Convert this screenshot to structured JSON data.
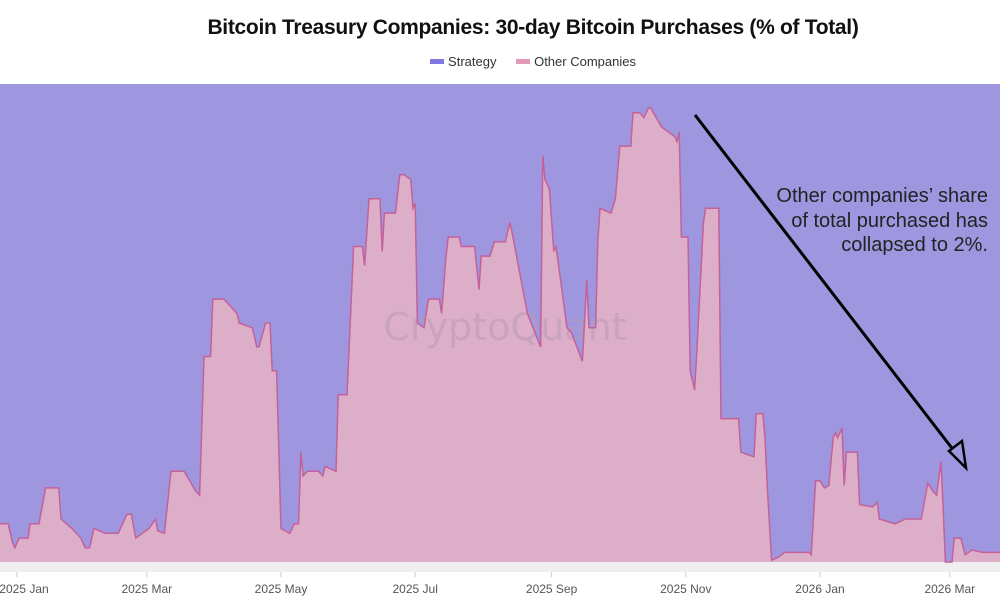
{
  "chart_data": {
    "type": "area",
    "stacked": "percent",
    "title": "Bitcoin Treasury Companies: 30-day Bitcoin Purchases (% of Total)",
    "legend_position": "top-center",
    "grid": false,
    "ylim": [
      0,
      100
    ],
    "x_ticks": [
      "2025 Jan",
      "2025 Mar",
      "2025 May",
      "2025 Jul",
      "2025 Sep",
      "2025 Nov",
      "2026 Jan",
      "2026 Mar"
    ],
    "x_tick_dates": [
      "2025-01-01",
      "2025-03-01",
      "2025-05-01",
      "2025-07-01",
      "2025-09-01",
      "2025-11-01",
      "2026-01-01",
      "2026-03-01"
    ],
    "x": [
      "2024-12-24",
      "2024-12-28",
      "2024-12-30",
      "2024-12-31",
      "2025-01-02",
      "2025-01-06",
      "2025-01-07",
      "2025-01-11",
      "2025-01-14",
      "2025-01-20",
      "2025-01-21",
      "2025-01-26",
      "2025-01-30",
      "2025-02-01",
      "2025-02-03",
      "2025-02-05",
      "2025-02-10",
      "2025-02-16",
      "2025-02-20",
      "2025-02-22",
      "2025-02-24",
      "2025-03-02",
      "2025-03-05",
      "2025-03-06",
      "2025-03-09",
      "2025-03-12",
      "2025-03-18",
      "2025-03-23",
      "2025-03-25",
      "2025-03-27",
      "2025-03-30",
      "2025-03-31",
      "2025-04-05",
      "2025-04-11",
      "2025-04-12",
      "2025-04-18",
      "2025-04-20",
      "2025-04-21",
      "2025-04-24",
      "2025-04-26",
      "2025-04-27",
      "2025-04-29",
      "2025-05-01",
      "2025-05-05",
      "2025-05-07",
      "2025-05-09",
      "2025-05-10",
      "2025-05-11",
      "2025-05-13",
      "2025-05-18",
      "2025-05-20",
      "2025-05-21",
      "2025-05-26",
      "2025-05-27",
      "2025-05-31",
      "2025-06-03",
      "2025-06-07",
      "2025-06-08",
      "2025-06-10",
      "2025-06-15",
      "2025-06-16",
      "2025-06-17",
      "2025-06-22",
      "2025-06-24",
      "2025-06-26",
      "2025-06-29",
      "2025-06-30",
      "2025-07-01",
      "2025-07-02",
      "2025-07-05",
      "2025-07-07",
      "2025-07-12",
      "2025-07-13",
      "2025-07-15",
      "2025-07-16",
      "2025-07-21",
      "2025-07-22",
      "2025-07-28",
      "2025-07-30",
      "2025-07-31",
      "2025-08-04",
      "2025-08-06",
      "2025-08-11",
      "2025-08-13",
      "2025-08-14",
      "2025-08-21",
      "2025-08-27",
      "2025-08-28",
      "2025-08-29",
      "2025-08-31",
      "2025-09-02",
      "2025-09-03",
      "2025-09-08",
      "2025-09-10",
      "2025-09-15",
      "2025-09-17",
      "2025-09-18",
      "2025-09-21",
      "2025-09-22",
      "2025-09-23",
      "2025-09-28",
      "2025-09-30",
      "2025-10-02",
      "2025-10-07",
      "2025-10-08",
      "2025-10-11",
      "2025-10-13",
      "2025-10-15",
      "2025-10-16",
      "2025-10-21",
      "2025-10-27",
      "2025-10-28",
      "2025-10-29",
      "2025-10-30",
      "2025-11-02",
      "2025-11-03",
      "2025-11-05",
      "2025-11-06",
      "2025-11-09",
      "2025-11-10",
      "2025-11-16",
      "2025-11-17",
      "2025-11-25",
      "2025-11-26",
      "2025-12-02",
      "2025-12-03",
      "2025-12-06",
      "2025-12-07",
      "2025-12-08",
      "2025-12-10",
      "2025-12-13",
      "2025-12-16",
      "2025-12-27",
      "2025-12-28",
      "2025-12-30",
      "2026-01-01",
      "2026-01-03",
      "2026-01-05",
      "2026-01-07",
      "2026-01-08",
      "2026-01-09",
      "2026-01-11",
      "2026-01-12",
      "2026-01-13",
      "2026-01-18",
      "2026-01-19",
      "2026-01-25",
      "2026-01-27",
      "2026-01-28",
      "2026-02-04",
      "2026-02-09",
      "2026-02-12",
      "2026-02-16",
      "2026-02-19",
      "2026-02-21",
      "2026-02-23",
      "2026-02-25",
      "2026-02-26",
      "2026-02-27",
      "2026-03-02",
      "2026-03-03",
      "2026-03-06",
      "2026-03-08",
      "2026-03-11",
      "2026-03-16",
      "2026-03-19",
      "2026-03-24"
    ],
    "series": [
      {
        "name": "Other Companies",
        "color": "#dcaec8",
        "line_color": "#c4609a",
        "values": [
          8,
          8,
          4,
          3,
          5,
          5,
          8,
          8,
          15.5,
          15.5,
          9,
          7,
          5,
          3,
          3,
          7,
          6,
          6,
          10,
          10,
          5,
          7,
          9,
          6.5,
          6,
          19,
          19,
          15,
          14,
          43,
          43,
          55,
          55,
          52,
          50,
          49,
          45,
          45,
          50,
          50,
          40,
          40,
          7,
          6,
          8,
          8,
          23,
          18,
          19,
          19,
          18,
          20,
          19,
          35,
          35,
          66,
          66,
          62,
          76,
          76,
          65,
          73,
          73,
          81,
          81,
          80,
          74,
          75,
          50,
          49,
          55,
          55,
          52,
          64,
          68,
          68,
          66,
          66,
          57,
          64,
          64,
          67,
          67,
          71,
          69,
          52,
          45,
          85,
          80,
          78,
          65,
          66,
          49,
          48,
          42,
          59,
          49,
          49,
          67,
          74,
          73,
          76,
          87,
          87,
          94,
          94,
          93,
          95,
          95,
          91,
          89,
          88,
          90,
          68,
          68,
          40,
          36,
          44,
          71,
          74,
          74,
          30,
          30,
          23,
          22,
          31,
          31,
          26,
          16,
          0.4,
          1,
          2,
          2,
          1.5,
          17,
          17,
          15.5,
          16,
          26,
          27,
          26,
          28,
          16,
          23,
          23,
          12,
          11.5,
          12.5,
          9,
          8,
          9,
          9,
          9,
          16.5,
          15,
          14,
          21,
          11,
          0,
          0,
          5,
          5,
          1.5,
          2.5,
          2,
          2,
          2
        ]
      },
      {
        "name": "Strategy",
        "color": "#9e97e0",
        "values": [
          92,
          92,
          96,
          97,
          95,
          95,
          92,
          92,
          84.5,
          84.5,
          91,
          93,
          95,
          97,
          97,
          93,
          94,
          94,
          90,
          90,
          95,
          93,
          91,
          93.5,
          94,
          81,
          81,
          85,
          86,
          57,
          57,
          45,
          45,
          48,
          50,
          51,
          55,
          55,
          50,
          50,
          60,
          60,
          93,
          94,
          92,
          92,
          77,
          82,
          81,
          81,
          82,
          80,
          81,
          65,
          65,
          34,
          34,
          38,
          24,
          24,
          35,
          27,
          27,
          19,
          19,
          20,
          26,
          25,
          50,
          51,
          45,
          45,
          48,
          36,
          32,
          32,
          34,
          34,
          43,
          36,
          36,
          33,
          33,
          29,
          31,
          48,
          55,
          15,
          20,
          22,
          35,
          34,
          51,
          52,
          58,
          41,
          51,
          51,
          33,
          26,
          27,
          24,
          13,
          13,
          6,
          6,
          7,
          5,
          5,
          9,
          11,
          12,
          10,
          32,
          32,
          60,
          64,
          56,
          29,
          26,
          26,
          70,
          70,
          77,
          78,
          69,
          69,
          74,
          84,
          99.6,
          99,
          98,
          98,
          98.5,
          83,
          83,
          84.5,
          84,
          74,
          73,
          74,
          72,
          84,
          77,
          77,
          88,
          88.5,
          87.5,
          91,
          92,
          91,
          91,
          91,
          83.5,
          85,
          86,
          79,
          89,
          100,
          100,
          95,
          95,
          98.5,
          97.5,
          98,
          98,
          98
        ]
      }
    ],
    "annotation": "Other companies’ share of total purchased has collapsed to 2%.",
    "watermark": "CryptoQuant"
  }
}
